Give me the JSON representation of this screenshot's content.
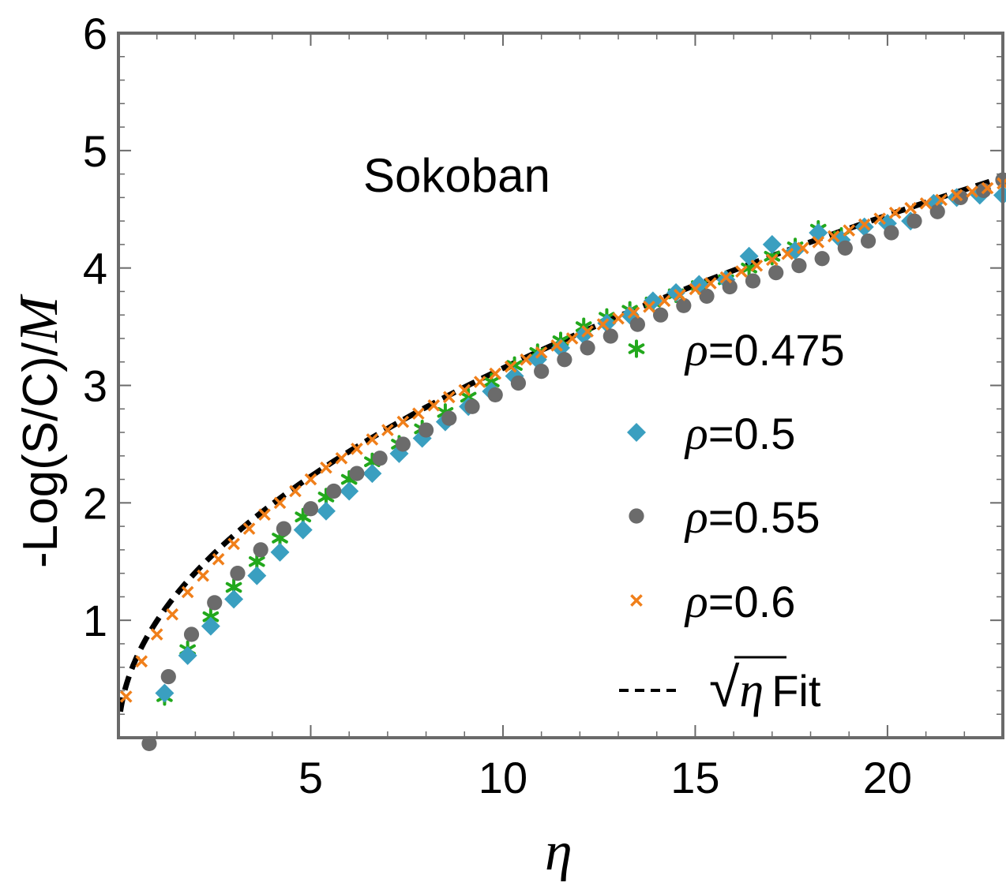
{
  "chart_data": {
    "type": "scatter",
    "title": "",
    "annotation": "Sokoban",
    "xlabel": "η",
    "ylabel": "-Log(S/C)/",
    "ylabel_symbol": "M",
    "xlim": [
      0,
      23
    ],
    "ylim": [
      0,
      6
    ],
    "x_ticks": [
      5,
      10,
      15,
      20
    ],
    "y_ticks": [
      1,
      2,
      3,
      4,
      5,
      6
    ],
    "x_tick_labels": [
      "5",
      "10",
      "15",
      "20"
    ],
    "y_tick_labels": [
      "1",
      "2",
      "3",
      "4",
      "5",
      "6"
    ],
    "grid": false,
    "legend_position": "bottom-right",
    "series": [
      {
        "name": "ρ=0.475",
        "marker": "asterisk",
        "color": "#22a81c",
        "x": [
          1.2,
          1.8,
          2.4,
          3.0,
          3.6,
          4.2,
          4.8,
          5.4,
          6.0,
          6.6,
          7.3,
          7.9,
          8.5,
          9.1,
          9.7,
          10.3,
          10.9,
          11.5,
          12.1,
          12.7,
          13.3,
          13.9,
          14.5,
          15.1,
          15.8,
          16.4,
          17.0,
          17.6,
          18.2,
          18.8
        ],
        "y": [
          0.35,
          0.75,
          1.03,
          1.28,
          1.5,
          1.7,
          1.88,
          2.05,
          2.2,
          2.35,
          2.5,
          2.63,
          2.77,
          2.9,
          3.03,
          3.17,
          3.28,
          3.38,
          3.5,
          3.58,
          3.64,
          3.71,
          3.78,
          3.85,
          3.9,
          4.0,
          4.1,
          4.18,
          4.33,
          4.27
        ]
      },
      {
        "name": "ρ=0.5",
        "marker": "diamond",
        "color": "#3a9fc0",
        "x": [
          1.2,
          1.8,
          2.4,
          3.0,
          3.6,
          4.2,
          4.8,
          5.4,
          6.0,
          6.6,
          7.3,
          7.9,
          8.5,
          9.1,
          9.7,
          10.3,
          10.9,
          11.5,
          12.1,
          12.7,
          13.3,
          13.9,
          14.5,
          15.1,
          15.8,
          16.4,
          17.0,
          17.6,
          18.2,
          18.8,
          19.4,
          20.0,
          20.6,
          21.2,
          21.8,
          22.4,
          23.0
        ],
        "y": [
          0.38,
          0.7,
          0.95,
          1.18,
          1.38,
          1.58,
          1.77,
          1.93,
          2.1,
          2.25,
          2.42,
          2.55,
          2.69,
          2.82,
          2.95,
          3.08,
          3.22,
          3.32,
          3.43,
          3.53,
          3.6,
          3.72,
          3.79,
          3.86,
          3.9,
          4.1,
          4.2,
          4.15,
          4.3,
          4.24,
          4.35,
          4.38,
          4.4,
          4.55,
          4.6,
          4.62,
          4.62
        ]
      },
      {
        "name": "ρ=0.55",
        "marker": "circle",
        "color": "#6b6b6b",
        "x": [
          0.8,
          1.3,
          1.9,
          2.5,
          3.1,
          3.7,
          4.3,
          5.0,
          5.6,
          6.2,
          6.8,
          7.4,
          8.0,
          8.6,
          9.2,
          9.8,
          10.4,
          11.0,
          11.6,
          12.2,
          12.8,
          13.5,
          14.1,
          14.7,
          15.3,
          15.9,
          16.5,
          17.1,
          17.7,
          18.3,
          18.9,
          19.5,
          20.1,
          20.7,
          21.3,
          21.9,
          22.5,
          23.0
        ],
        "y": [
          -0.05,
          0.52,
          0.88,
          1.15,
          1.4,
          1.6,
          1.78,
          1.95,
          2.1,
          2.25,
          2.38,
          2.5,
          2.62,
          2.72,
          2.82,
          2.92,
          3.02,
          3.12,
          3.22,
          3.32,
          3.42,
          3.52,
          3.6,
          3.68,
          3.76,
          3.84,
          3.89,
          3.96,
          4.02,
          4.08,
          4.17,
          4.23,
          4.3,
          4.4,
          4.48,
          4.6,
          4.66,
          4.75
        ]
      },
      {
        "name": "ρ=0.6",
        "marker": "cross",
        "color": "#f07f1a",
        "x": [
          0.2,
          0.6,
          1.0,
          1.4,
          1.8,
          2.2,
          2.6,
          3.0,
          3.4,
          3.8,
          4.2,
          4.6,
          5.0,
          5.4,
          5.8,
          6.2,
          6.6,
          7.0,
          7.4,
          7.8,
          8.2,
          8.6,
          9.0,
          9.4,
          9.8,
          10.2,
          10.6,
          11.0,
          11.4,
          11.8,
          12.2,
          12.6,
          13.0,
          13.4,
          13.8,
          14.2,
          14.6,
          15.0,
          15.4,
          15.8,
          16.2,
          16.6,
          17.0,
          17.4,
          17.8,
          18.2,
          18.6,
          19.0,
          19.4,
          19.8,
          20.2,
          20.6,
          21.0,
          21.4,
          21.8,
          22.2,
          22.6,
          23.0
        ],
        "y": [
          0.35,
          0.65,
          0.88,
          1.05,
          1.24,
          1.38,
          1.52,
          1.65,
          1.78,
          1.9,
          2.0,
          2.1,
          2.2,
          2.3,
          2.38,
          2.46,
          2.54,
          2.62,
          2.69,
          2.76,
          2.83,
          2.9,
          2.96,
          3.03,
          3.1,
          3.16,
          3.22,
          3.28,
          3.34,
          3.4,
          3.46,
          3.52,
          3.57,
          3.62,
          3.67,
          3.72,
          3.77,
          3.82,
          3.87,
          3.92,
          3.97,
          4.02,
          4.07,
          4.12,
          4.17,
          4.22,
          4.27,
          4.32,
          4.37,
          4.42,
          4.47,
          4.51,
          4.55,
          4.58,
          4.62,
          4.65,
          4.68,
          4.72
        ]
      }
    ],
    "fit": {
      "name": "Fit",
      "label_prefix": "√",
      "label_var": "η",
      "label_suffix": "Fit",
      "color": "#000000",
      "style": "dashed",
      "formula": "y = a*sqrt(x)",
      "a": 0.995,
      "x_start": 0.05,
      "x_end": 23
    }
  }
}
